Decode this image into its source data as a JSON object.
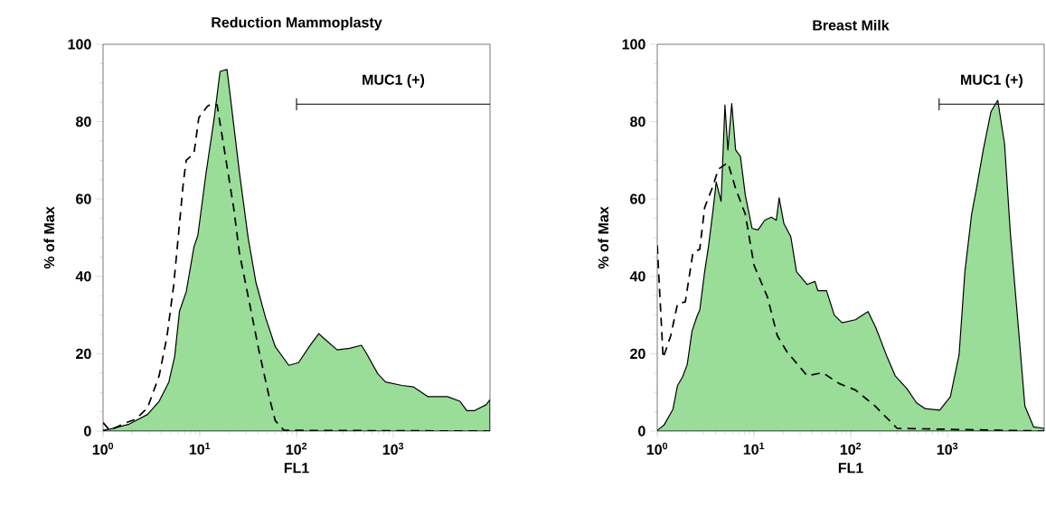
{
  "chart_data": [
    {
      "type": "area",
      "title": "Reduction Mammoplasty",
      "xlabel": "FL1",
      "ylabel": "% of Max",
      "log": "x",
      "xlim": [
        1,
        10000
      ],
      "ylim": [
        0,
        100
      ],
      "xticks": [
        {
          "value": 1,
          "label": "10$^{0}$"
        },
        {
          "value": 10,
          "label": "10$^{1}$"
        },
        {
          "value": 100,
          "label": "10$^{2}$"
        },
        {
          "value": 1000,
          "label": "10$^{3}$"
        }
      ],
      "yticks": [
        0,
        20,
        40,
        60,
        80,
        100
      ],
      "series": [
        {
          "type": "area",
          "color": "#99dd99",
          "x": [
            1,
            1.23,
            1.86,
            2.88,
            3.8,
            4.79,
            5.5,
            6.17,
            7.24,
            8.71,
            9.55,
            11.5,
            14.1,
            16.2,
            19.1,
            20.4,
            25.7,
            31.6,
            38,
            47.9,
            60.3,
            83.2,
            105,
            135,
            170,
            191,
            263,
            355,
            468,
            525,
            692,
            832,
            1230,
            1622,
            2291,
            3631,
            4898,
            5754,
            6918,
            9120,
            10000
          ],
          "values": [
            0.2,
            0.6,
            1.8,
            4.3,
            7.7,
            12.7,
            19.3,
            31,
            36,
            47.7,
            50.6,
            66,
            81,
            93,
            93.5,
            87.7,
            66.8,
            50,
            38.5,
            29.3,
            21.8,
            17,
            17.7,
            21.8,
            25.2,
            24,
            21,
            21.4,
            22.2,
            20.2,
            14.8,
            12.7,
            11.8,
            11.4,
            8.9,
            8.9,
            7.7,
            5.3,
            5.3,
            6.8,
            8.1
          ]
        },
        {
          "type": "line",
          "color": "#000000",
          "line_style": "dashed",
          "x": [
            1,
            1.17,
            1.74,
            2.19,
            2.88,
            3.8,
            4.57,
            5.37,
            6.03,
            6.76,
            7.24,
            8.71,
            9.77,
            12,
            13.5,
            15.1,
            19.1,
            22.4,
            25.7,
            32.4,
            40.7,
            52.5,
            60.3,
            74.1,
            10000
          ],
          "values": [
            2.2,
            0.2,
            2.2,
            3.1,
            6,
            14.3,
            24.3,
            37.7,
            51,
            64.3,
            70,
            71.8,
            81,
            84,
            84.7,
            84.3,
            68.5,
            57.7,
            46,
            33.5,
            21,
            8.5,
            2.7,
            0.2,
            0
          ]
        },
        {
          "type": "line",
          "name": "MUC1 (+)",
          "color": "#000000",
          "x": [
            100,
            10000
          ],
          "values": [
            84.5,
            84.5
          ]
        }
      ]
    },
    {
      "type": "area",
      "title": "Breast Milk",
      "xlabel": "FL1",
      "ylabel": "% of Max",
      "log": "x",
      "xlim": [
        1,
        10000
      ],
      "ylim": [
        0,
        100
      ],
      "xticks": [
        {
          "value": 1,
          "label": "10$^{0}$"
        },
        {
          "value": 10,
          "label": "10$^{1}$"
        },
        {
          "value": 100,
          "label": "10$^{2}$"
        },
        {
          "value": 1000,
          "label": "10$^{3}$"
        }
      ],
      "yticks": [
        0,
        20,
        40,
        60,
        80,
        100
      ],
      "series": [
        {
          "type": "area",
          "color": "#99dd99",
          "x": [
            1,
            1.17,
            1.45,
            1.62,
            1.82,
            2.04,
            2.29,
            2.57,
            2.75,
            3.09,
            3.39,
            3.8,
            4.07,
            4.57,
            5.01,
            5.37,
            5.89,
            6.46,
            7.24,
            8.13,
            9.55,
            11,
            12.9,
            15.1,
            17,
            18.2,
            20.4,
            24,
            27.5,
            35.5,
            42.7,
            45.7,
            56.2,
            67.6,
            81.3,
            112,
            151,
            182,
            240,
            288,
            380,
            479,
            589,
            832,
            1072,
            1318,
            1514,
            1778,
            1995,
            2344,
            2818,
            3311,
            3890,
            4467,
            5495,
            6310,
            7762,
            10000
          ],
          "values": [
            0.2,
            1.5,
            5.6,
            11.8,
            13.9,
            17.2,
            25.9,
            29.6,
            31.3,
            41.2,
            47.8,
            57.8,
            64.4,
            59.4,
            84.3,
            72.7,
            84.7,
            72.7,
            71,
            61,
            52.4,
            52,
            54.5,
            55.3,
            54.5,
            60.3,
            53.6,
            50.3,
            41.2,
            37.9,
            38.7,
            36.3,
            36.3,
            30,
            28,
            28.8,
            30.9,
            26.7,
            18.9,
            14.3,
            11,
            7.3,
            5.8,
            5.4,
            8.9,
            19.7,
            41.2,
            56.1,
            62.7,
            72.7,
            82.6,
            85.5,
            74.3,
            51.2,
            24.7,
            6.5,
            1.1,
            0.7
          ]
        },
        {
          "type": "line",
          "color": "#000000",
          "line_style": "dashed",
          "x": [
            1,
            1.15,
            1.38,
            1.62,
            1.95,
            2.34,
            2.75,
            3.09,
            3.8,
            4.27,
            5.37,
            6.46,
            8.13,
            10,
            13.8,
            17.4,
            21.9,
            35.5,
            51.3,
            75.9,
            112,
            178,
            302,
            10000
          ],
          "values": [
            48,
            18.9,
            24.7,
            32.9,
            33.4,
            46.2,
            47,
            57.8,
            63.6,
            67.7,
            69.4,
            62.7,
            56.1,
            42.9,
            34.6,
            24.7,
            20.5,
            14.3,
            15.1,
            12.3,
            10.6,
            6.5,
            0.7,
            0
          ]
        },
        {
          "type": "line",
          "name": "MUC1 (+)",
          "color": "#000000",
          "x": [
            820,
            10000
          ],
          "values": [
            84.5,
            84.5
          ]
        }
      ]
    }
  ]
}
